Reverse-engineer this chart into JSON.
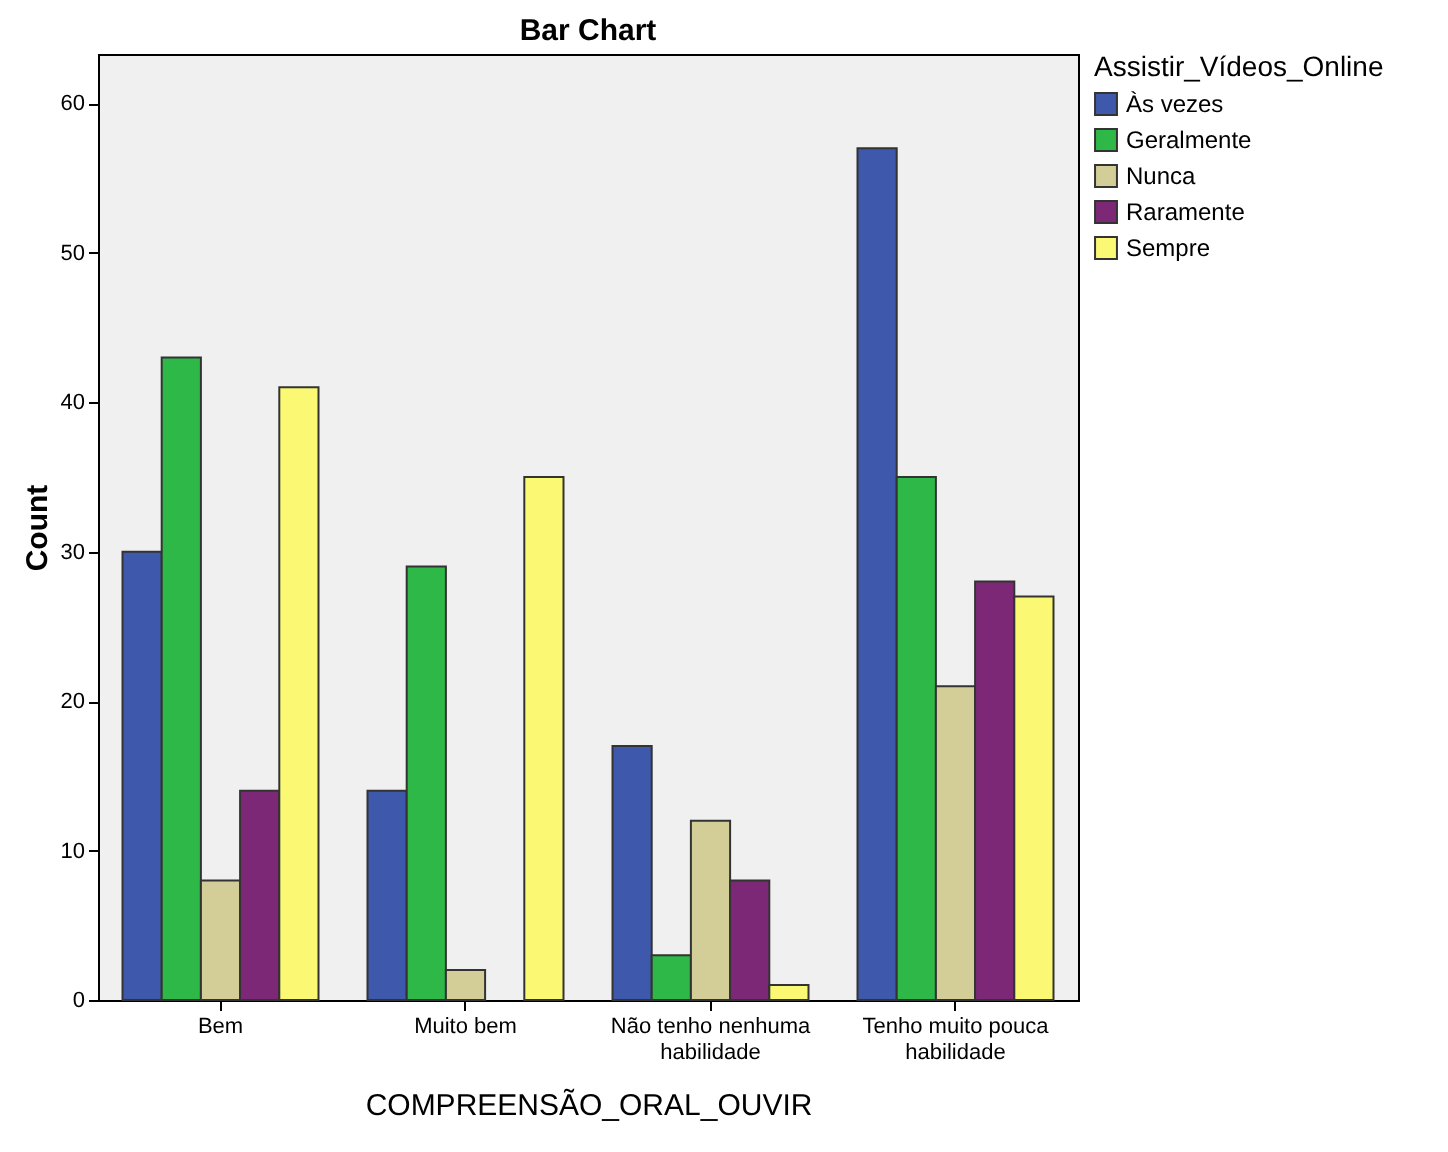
{
  "chart_data": {
    "type": "bar",
    "title": "Bar Chart",
    "xlabel": "COMPREENSÃO_ORAL_OUVIR",
    "ylabel": "Count",
    "legend_title": "Assistir_Vídeos_Online",
    "categories": [
      "Bem",
      "Muito bem",
      "Não tenho nenhuma habilidade",
      "Tenho muito pouca habilidade"
    ],
    "series": [
      {
        "name": "Às vezes",
        "color": "#3e58ac",
        "values": [
          30,
          14,
          17,
          57
        ]
      },
      {
        "name": "Geralmente",
        "color": "#2eb848",
        "values": [
          43,
          29,
          3,
          35
        ]
      },
      {
        "name": "Nunca",
        "color": "#d3ce97",
        "values": [
          8,
          2,
          12,
          21
        ]
      },
      {
        "name": "Raramente",
        "color": "#7d2877",
        "values": [
          14,
          null,
          8,
          28
        ]
      },
      {
        "name": "Sempre",
        "color": "#fbf873",
        "values": [
          41,
          35,
          1,
          27
        ]
      }
    ],
    "ylim": [
      0,
      63.3
    ],
    "yticks": [
      0,
      10,
      20,
      30,
      40,
      50,
      60
    ],
    "grid": false,
    "legend": "top right"
  }
}
